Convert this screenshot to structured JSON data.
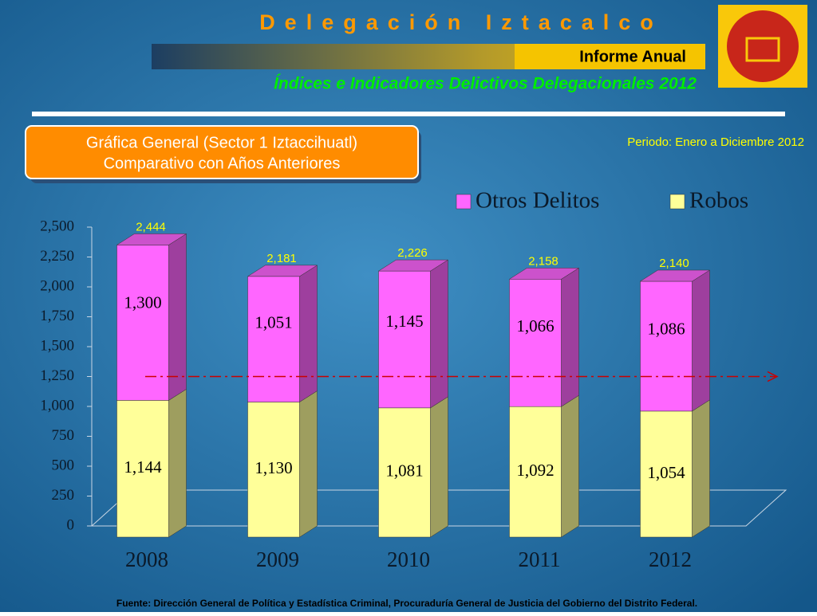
{
  "header": {
    "title": "Delegación Iztacalco",
    "report": "Informe Anual",
    "subtitle": "Índices e Indicadores Delictivos Delegacionales 2012",
    "box": [
      "Gráfica General (Sector 1 Iztaccihuatl)",
      "Comparativo con Años Anteriores"
    ],
    "period": "Periodo: Enero a Diciembre 2012"
  },
  "chart_data": {
    "type": "stacked_bar",
    "categories": [
      "2008",
      "2009",
      "2010",
      "2011",
      "2012"
    ],
    "series": [
      {
        "name": "Robos",
        "color": "#ffff99",
        "values": [
          1144,
          1130,
          1081,
          1092,
          1054
        ],
        "value_labels": [
          "1,144",
          "1,130",
          "1,081",
          "1,092",
          "1,054"
        ]
      },
      {
        "name": "Otros Delitos",
        "color": "#ff66ff",
        "values": [
          1300,
          1051,
          1145,
          1066,
          1086
        ],
        "value_labels": [
          "1,300",
          "1,051",
          "1,145",
          "1,066",
          "1,086"
        ]
      }
    ],
    "totals": {
      "values": [
        2444,
        2181,
        2226,
        2158,
        2140
      ],
      "value_labels": [
        "2,444",
        "2,181",
        "2,226",
        "2,158",
        "2,140"
      ],
      "color": "#ffff00"
    },
    "ylim": [
      0,
      2500
    ],
    "yticks": [
      0,
      250,
      500,
      750,
      {
        "value": 1000,
        "label": "1,000"
      },
      {
        "value": 1250,
        "label": "1,250"
      },
      {
        "value": 1500,
        "label": "1,500"
      },
      {
        "value": 1750,
        "label": "1,750"
      },
      {
        "value": 2000,
        "label": "2,000"
      },
      {
        "value": 2250,
        "label": "2,250"
      },
      {
        "value": 2500,
        "label": "2,500"
      }
    ],
    "reference_line": {
      "value": 1250,
      "color": "#cc0000"
    },
    "legend": "top-right"
  },
  "footer": {
    "source": "Fuente: Dirección General de Política y Estadística Criminal, Procuraduría General de Justicia del Gobierno del Distrito Federal."
  }
}
